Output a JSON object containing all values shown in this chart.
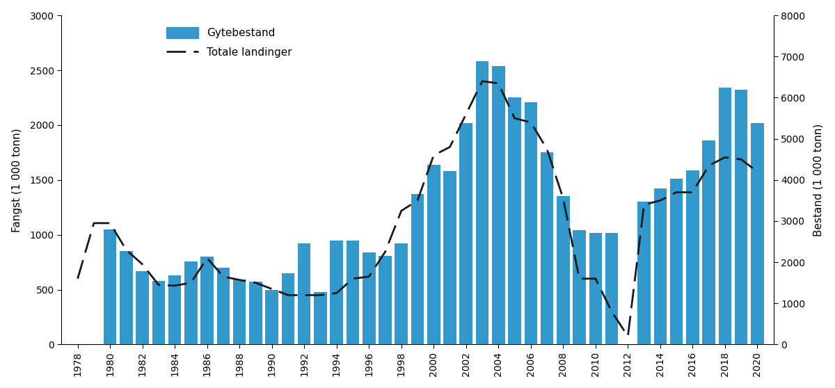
{
  "years": [
    1978,
    1979,
    1980,
    1981,
    1982,
    1983,
    1984,
    1985,
    1986,
    1987,
    1988,
    1989,
    1990,
    1991,
    1992,
    1993,
    1994,
    1995,
    1996,
    1997,
    1998,
    1999,
    2000,
    2001,
    2002,
    2003,
    2004,
    2005,
    2006,
    2007,
    2008,
    2009,
    2010,
    2011,
    2012,
    2013,
    2014,
    2015,
    2016,
    2017,
    2018,
    2019,
    2020
  ],
  "gytebestand": [
    0,
    0,
    1050,
    850,
    670,
    580,
    630,
    760,
    800,
    700,
    590,
    570,
    500,
    650,
    920,
    480,
    950,
    950,
    840,
    810,
    920,
    1370,
    1640,
    1580,
    2020,
    2580,
    2540,
    2250,
    2210,
    1750,
    1350,
    1040,
    1020,
    1020,
    0,
    1300,
    1420,
    1510,
    1590,
    1860,
    2340,
    2320,
    2020
  ],
  "totale_landinger_right": [
    1600,
    2950,
    2950,
    2300,
    1950,
    1450,
    1430,
    1500,
    2100,
    1650,
    1570,
    1500,
    1350,
    1200,
    1200,
    1200,
    1250,
    1600,
    1650,
    2250,
    3250,
    3500,
    4600,
    4800,
    5600,
    6400,
    6350,
    5500,
    5400,
    4750,
    3550,
    1600,
    1600,
    800,
    200,
    3400,
    3500,
    3700,
    3700,
    4350,
    4550,
    4500,
    4200
  ],
  "bar_color": "#3399cc",
  "line_color": "#1a1a1a",
  "ylabel_left": "Fangst (1 000 tonn)",
  "ylabel_right": "Bestand (1 000 tonn)",
  "ylim_left": [
    0,
    3000
  ],
  "ylim_right": [
    0,
    8000
  ],
  "yticks_left": [
    0,
    500,
    1000,
    1500,
    2000,
    2500,
    3000
  ],
  "yticks_right": [
    0,
    1000,
    2000,
    3000,
    4000,
    5000,
    6000,
    7000,
    8000
  ],
  "xtick_years": [
    1978,
    1980,
    1982,
    1984,
    1986,
    1988,
    1990,
    1992,
    1994,
    1996,
    1998,
    2000,
    2002,
    2004,
    2006,
    2008,
    2010,
    2012,
    2014,
    2016,
    2018,
    2020
  ],
  "legend_bar_label": "Gytebestand",
  "legend_line_label": "Totale landinger",
  "background_color": "#ffffff"
}
